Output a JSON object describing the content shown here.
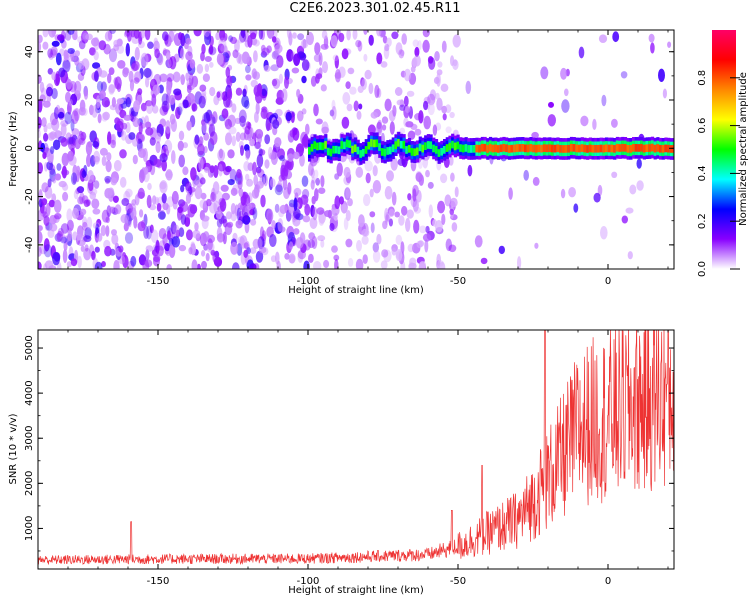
{
  "title": "C2E6.2023.301.02.45.R11",
  "chart_data": [
    {
      "type": "heatmap",
      "name": "spectrogram",
      "xlabel": "Height of straight line (km)",
      "ylabel": "Frequency (Hz)",
      "xlim": [
        -190,
        22
      ],
      "ylim": [
        -50,
        49
      ],
      "xticks": [
        -150,
        -100,
        -50,
        0
      ],
      "xtick_labels": [
        "-150",
        "-100",
        "-50",
        "0"
      ],
      "yticks": [
        -40,
        -20,
        0,
        20,
        40
      ],
      "ytick_labels": [
        "-40",
        "-20",
        "0",
        "20",
        "40"
      ],
      "colorbar": {
        "label": "Normalized spectral amplitude",
        "range": [
          0.0,
          1.0
        ],
        "ticks": [
          0.0,
          0.2,
          0.4,
          0.6,
          0.8
        ],
        "tick_labels": [
          "0.0",
          "0.2",
          "0.4",
          "0.6",
          "0.8"
        ],
        "colors": [
          "#ffffff",
          "#8800ff",
          "#0000ff",
          "#00ffff",
          "#00ff00",
          "#ffff00",
          "#ff8800",
          "#ff0000",
          "#ff0066"
        ]
      },
      "description": {
        "noise_region_x": [
          -190,
          -50
        ],
        "noise_level": 0.1,
        "signal_band_x": [
          -100,
          22
        ],
        "signal_band_frequency": 0,
        "signal_peak_region_x": [
          -45,
          22
        ],
        "signal_peak_level": 0.8
      }
    },
    {
      "type": "line",
      "name": "snr",
      "xlabel": "Height of straight line (km)",
      "ylabel": "SNR (10 * v/v)",
      "xlim": [
        -190,
        22
      ],
      "ylim": [
        100,
        5400
      ],
      "xticks": [
        -150,
        -100,
        -50,
        0
      ],
      "xtick_labels": [
        "-150",
        "-100",
        "-50",
        "0"
      ],
      "yticks": [
        1000,
        2000,
        3000,
        4000,
        5000
      ],
      "ytick_labels": [
        "1000",
        "2000",
        "3000",
        "4000",
        "5000"
      ],
      "color": "#ee3333",
      "trend": {
        "x": [
          -190,
          -150,
          -100,
          -60,
          -50,
          -40,
          -30,
          -25,
          -20,
          -15,
          -10,
          -5,
          0,
          10,
          20,
          22
        ],
        "y": [
          300,
          320,
          330,
          420,
          600,
          900,
          1200,
          1600,
          2100,
          2600,
          3200,
          3400,
          3500,
          3800,
          4000,
          4100
        ]
      },
      "spikes": [
        {
          "x": -159,
          "y": 1150
        },
        {
          "x": -52,
          "y": 1400
        },
        {
          "x": -42,
          "y": 2400
        },
        {
          "x": -21,
          "y": 5400
        }
      ]
    }
  ]
}
